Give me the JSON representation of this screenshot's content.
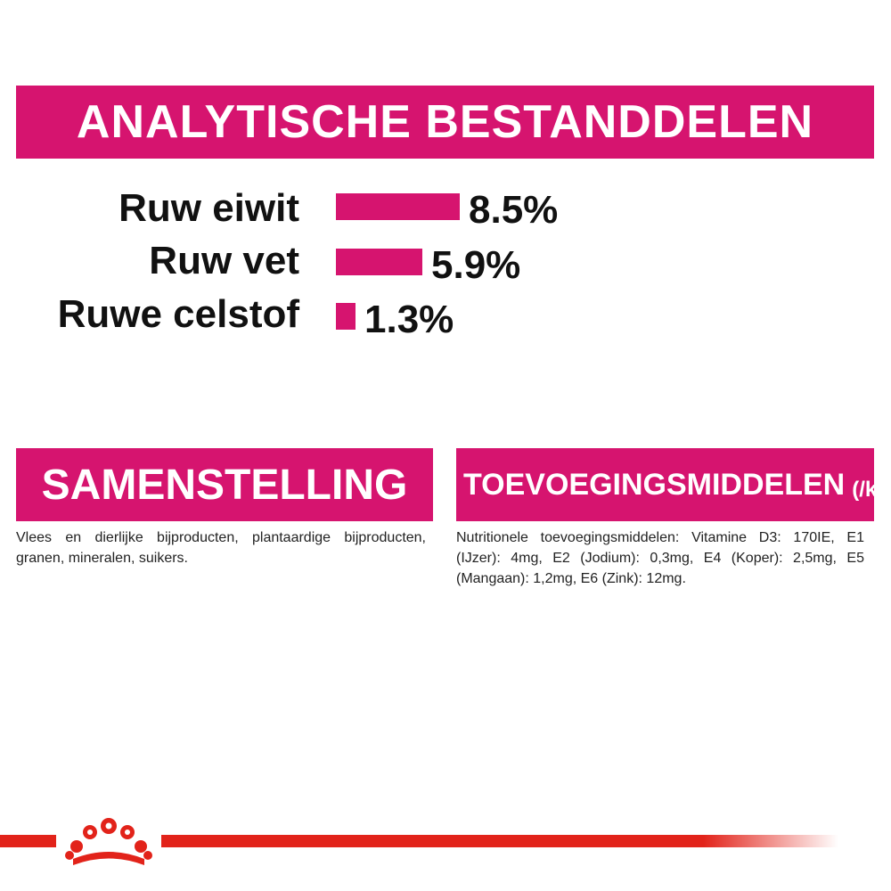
{
  "header": {
    "title": "ANALYTISCHE BESTANDDELEN"
  },
  "nutrients": [
    {
      "label": "Ruw eiwit",
      "value": "8.5%",
      "amount": 8.5
    },
    {
      "label": "Ruw vet",
      "value": "5.9%",
      "amount": 5.9
    },
    {
      "label": "Ruwe celstof",
      "value": "1.3%",
      "amount": 1.3
    }
  ],
  "composition": {
    "title": "SAMENSTELLING",
    "text": "Vlees en dierlijke bijproducten, plantaardige bijproducten, granen, mineralen, suikers."
  },
  "additives": {
    "title": "TOEVOEGINGSMIDDELEN",
    "title_suffix": "(/kg)",
    "text": "Nutritionele toevoegingsmiddelen: Vitamine D3: 170IE, E1 (IJzer): 4mg, E2 (Jodium): 0,3mg, E4 (Koper): 2,5mg, E5 (Mangaan): 1,2mg, E6 (Zink): 12mg."
  },
  "colors": {
    "accent": "#d6146f",
    "brand_red": "#e2231a"
  },
  "brand": {
    "icon": "royal-canin-crown-icon"
  }
}
